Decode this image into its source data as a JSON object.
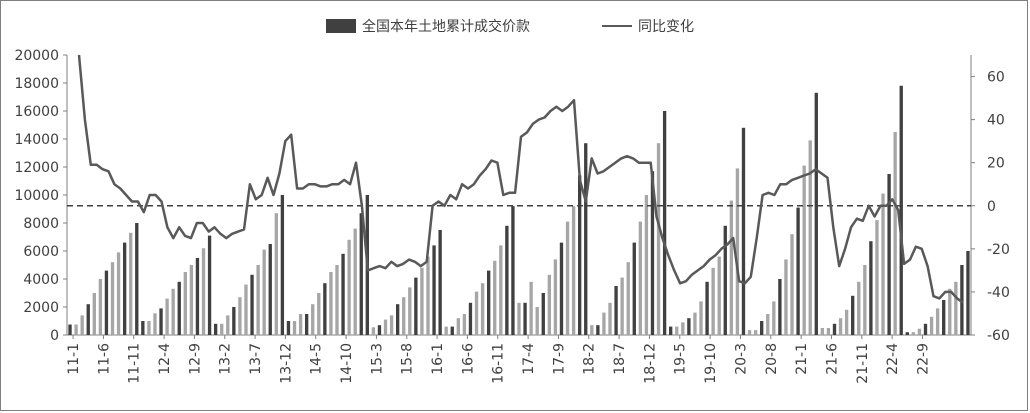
{
  "chart_data": {
    "type": "bar",
    "title": "",
    "legend": {
      "position": "top",
      "bars_label": "全国本年土地累计成交价款",
      "line_label": "同比变化"
    },
    "colors": {
      "bar_dark": "#404040",
      "bar_light": "#a6a6a6",
      "line": "#595959",
      "axis": "#808080",
      "text": "#404040",
      "zero_line": "#404040"
    },
    "y_left": {
      "min": 0,
      "max": 20000,
      "ticks": [
        0,
        2000,
        4000,
        6000,
        8000,
        10000,
        12000,
        14000,
        16000,
        18000,
        20000
      ]
    },
    "y_right": {
      "min": -60,
      "max": 70,
      "ticks": [
        -60,
        -40,
        -20,
        0,
        20,
        40,
        60
      ]
    },
    "x_tick_labels": [
      "11-1",
      "11-6",
      "11-11",
      "12-4",
      "12-9",
      "13-2",
      "13-7",
      "13-12",
      "14-5",
      "14-10",
      "15-3",
      "15-8",
      "16-1",
      "16-6",
      "16-11",
      "17-4",
      "17-9",
      "18-2",
      "18-7",
      "18-12",
      "19-5",
      "19-10",
      "20-3",
      "20-8",
      "21-1",
      "21-6",
      "21-11",
      "22-4",
      "22-9"
    ],
    "start_month": "11-1",
    "grid": false,
    "series": [
      {
        "name": "全国本年土地累计成交价款",
        "kind": "bar",
        "values": [
          [
            750,
            750,
            1400,
            2200,
            3000,
            4000,
            4600,
            5200,
            5900,
            6600,
            7300,
            8000
          ],
          [
            1000,
            1000,
            1550,
            1900,
            2600,
            3300,
            3800,
            4500,
            5000,
            5500,
            6200,
            7100
          ],
          [
            800,
            800,
            1400,
            2000,
            2700,
            3600,
            4300,
            5000,
            6100,
            6500,
            8700,
            10000
          ],
          [
            1000,
            1000,
            1500,
            1500,
            2200,
            3000,
            3700,
            4500,
            5000,
            5800,
            6800,
            7600,
            8700,
            10000
          ],
          [
            550,
            700,
            1100,
            1400,
            2200,
            2700,
            3400,
            4100,
            4800,
            5600,
            6400,
            7500
          ],
          [
            600,
            600,
            1200,
            1500,
            2300,
            3100,
            3700,
            4600,
            5300,
            6400,
            7800,
            9200
          ],
          [
            2300,
            2300,
            3800,
            2000,
            3000,
            4300,
            5400,
            6600,
            8100,
            9200,
            11400,
            13700
          ],
          [
            700,
            700,
            1600,
            2300,
            3500,
            4100,
            5200,
            6600,
            8100,
            10000,
            11700,
            13700,
            16000
          ],
          [
            600,
            600,
            900,
            1200,
            1600,
            2400,
            3800,
            4800,
            5600,
            7800,
            9600,
            11900,
            14800
          ],
          [
            350,
            350,
            1000,
            1500,
            2400,
            4000,
            5400,
            7200,
            9100,
            12100,
            13900,
            17300
          ],
          [
            500,
            500,
            800,
            1200,
            1800,
            2800,
            3800,
            5000,
            6700,
            8200,
            10100,
            11500,
            14500,
            17800
          ],
          [
            200,
            200,
            450,
            800,
            1300,
            1900,
            2500,
            3300,
            3800,
            5000,
            6000
          ]
        ]
      },
      {
        "name": "同比变化",
        "kind": "line",
        "values": [
          70,
          40,
          19,
          19,
          17,
          16,
          10,
          8,
          5,
          2,
          2,
          -3,
          5,
          5,
          2,
          -10,
          -15,
          -10,
          -14,
          -15,
          -8,
          -8,
          -12,
          -10,
          -13,
          -15,
          -13,
          -12,
          -11,
          10,
          3,
          5,
          13,
          5,
          15,
          30,
          33,
          8,
          8,
          10,
          10,
          9,
          9,
          10,
          10,
          12,
          10,
          20,
          0,
          -30,
          -29,
          -28,
          -29,
          -26,
          -28,
          -27,
          -25,
          -26,
          -28,
          -26,
          0,
          2,
          0,
          5,
          3,
          10,
          8,
          10,
          14,
          17,
          21,
          20,
          5,
          6,
          6,
          32,
          34,
          38,
          40,
          41,
          44,
          46,
          44,
          46,
          49,
          12,
          2,
          22,
          15,
          16,
          18,
          20,
          22,
          23,
          22,
          20,
          20,
          20,
          -5,
          -15,
          -23,
          -30,
          -36,
          -35,
          -32,
          -30,
          -28,
          -25,
          -23,
          -20,
          -18,
          -15,
          -35,
          -36,
          -33,
          -15,
          5,
          6,
          5,
          10,
          10,
          12,
          13,
          14,
          15,
          17,
          15,
          13,
          -10,
          -28,
          -20,
          -10,
          -6,
          -7,
          0,
          -5,
          0,
          0,
          3,
          -2,
          -27,
          -25,
          -19,
          -20,
          -28,
          -42,
          -43,
          -40,
          -40,
          -43,
          -45
        ]
      }
    ]
  }
}
